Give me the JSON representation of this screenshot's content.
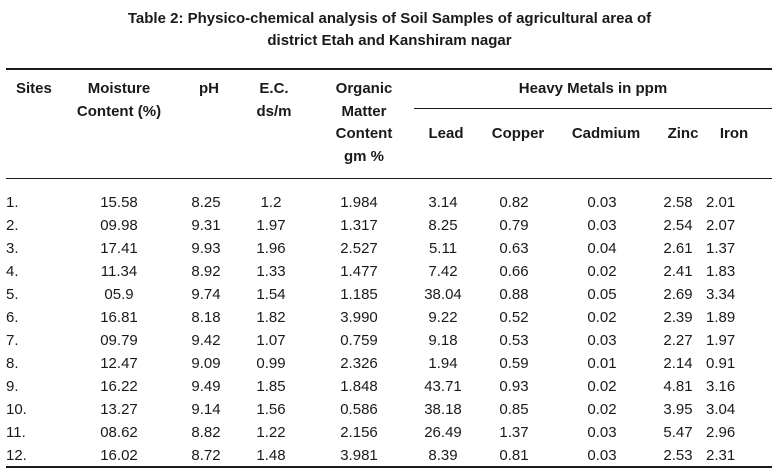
{
  "caption": {
    "line1": "Table 2: Physico-chemical analysis of Soil Samples of agricultural area of",
    "line2": "district Etah and Kanshiram nagar"
  },
  "headers": {
    "sites": "Sites",
    "moisture_line1": "Moisture",
    "moisture_line2": "Content (%)",
    "ph": "pH",
    "ec_line1": "E.C.",
    "ec_line2": "ds/m",
    "om_line1": "Organic",
    "om_line2": "Matter",
    "om_line3": "Content",
    "om_line4": "gm %",
    "heavy_metals": "Heavy Metals in ppm",
    "lead": "Lead",
    "copper": "Copper",
    "cadmium": "Cadmium",
    "zinc": "Zinc",
    "iron": "Iron"
  },
  "rows": [
    [
      "1.",
      "15.58",
      "8.25",
      "1.2",
      "1.984",
      "3.14",
      "0.82",
      "0.03",
      "2.58",
      "2.01"
    ],
    [
      "2.",
      "09.98",
      "9.31",
      "1.97",
      "1.317",
      "8.25",
      "0.79",
      "0.03",
      "2.54",
      "2.07"
    ],
    [
      "3.",
      "17.41",
      "9.93",
      "1.96",
      "2.527",
      "5.11",
      "0.63",
      "0.04",
      "2.61",
      "1.37"
    ],
    [
      "4.",
      "11.34",
      "8.92",
      "1.33",
      "1.477",
      "7.42",
      "0.66",
      "0.02",
      "2.41",
      "1.83"
    ],
    [
      "5.",
      "05.9",
      "9.74",
      "1.54",
      "1.185",
      "38.04",
      "0.88",
      "0.05",
      "2.69",
      "3.34"
    ],
    [
      "6.",
      "16.81",
      "8.18",
      "1.82",
      "3.990",
      "9.22",
      "0.52",
      "0.02",
      "2.39",
      "1.89"
    ],
    [
      "7.",
      "09.79",
      "9.42",
      "1.07",
      "0.759",
      "9.18",
      "0.53",
      "0.03",
      "2.27",
      "1.97"
    ],
    [
      "8.",
      "12.47",
      "9.09",
      "0.99",
      "2.326",
      "1.94",
      "0.59",
      "0.01",
      "2.14",
      "0.91"
    ],
    [
      "9.",
      "16.22",
      "9.49",
      "1.85",
      "1.848",
      "43.71",
      "0.93",
      "0.02",
      "4.81",
      "3.16"
    ],
    [
      "10.",
      "13.27",
      "9.14",
      "1.56",
      "0.586",
      "38.18",
      "0.85",
      "0.02",
      "3.95",
      "3.04"
    ],
    [
      "11.",
      "08.62",
      "8.82",
      "1.22",
      "2.156",
      "26.49",
      "1.37",
      "0.03",
      "5.47",
      "2.96"
    ],
    [
      "12.",
      "16.02",
      "8.72",
      "1.48",
      "3.981",
      "8.39",
      "0.81",
      "0.03",
      "2.53",
      "2.31"
    ]
  ]
}
